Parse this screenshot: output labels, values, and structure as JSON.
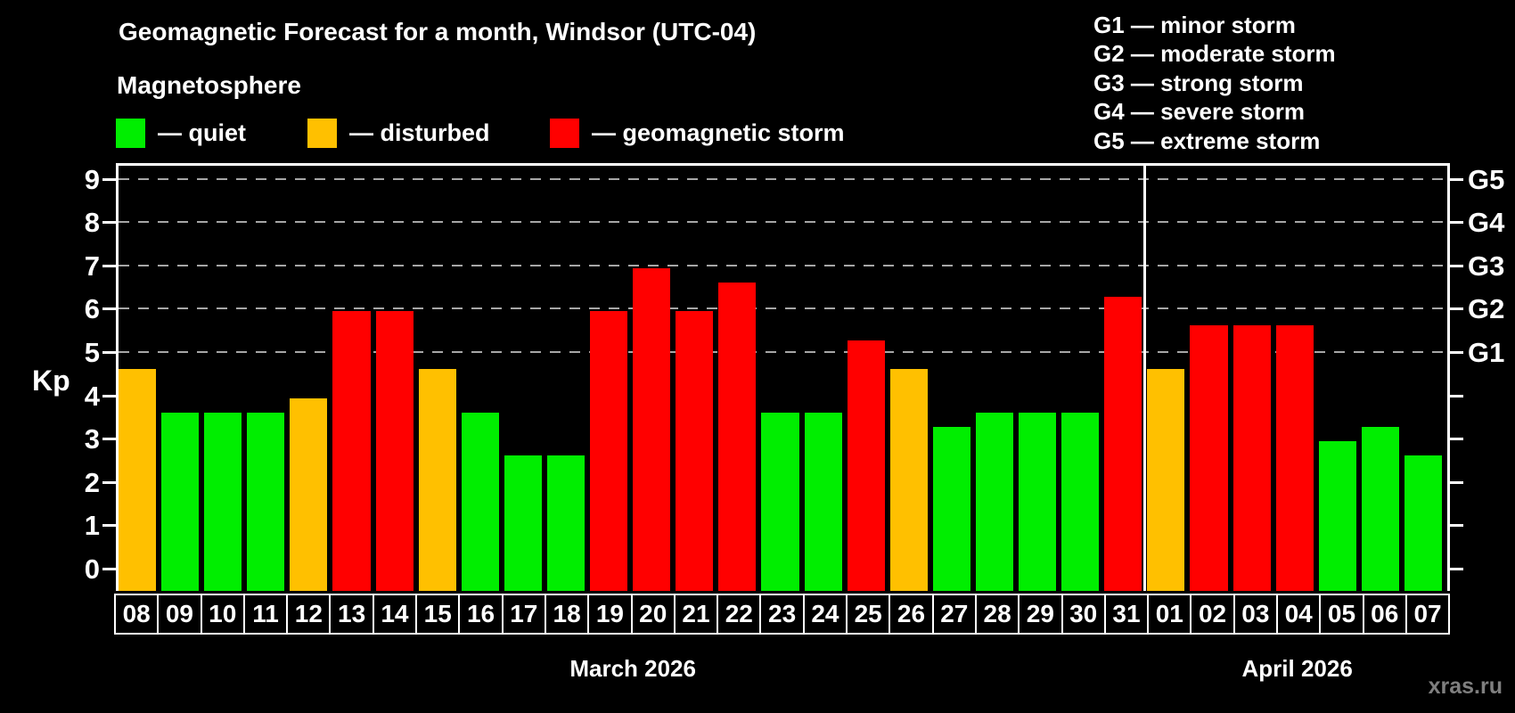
{
  "title": "Geomagnetic Forecast for a month, Windsor (UTC-04)",
  "subtitle": "Magnetosphere",
  "legend": [
    {
      "key": "quiet",
      "label": "— quiet",
      "color": "#00ee00"
    },
    {
      "key": "disturbed",
      "label": "— disturbed",
      "color": "#ffc000"
    },
    {
      "key": "storm",
      "label": "— geomagnetic storm",
      "color": "#ff0000"
    }
  ],
  "g_legend": [
    "G1 — minor storm",
    "G2 — moderate storm",
    "G3 — strong storm",
    "G4 — severe storm",
    "G5 — extreme storm"
  ],
  "ylabel": "Kp",
  "watermark": "xras.ru",
  "colors": {
    "quiet": "#00ee00",
    "disturbed": "#ffc000",
    "storm": "#ff0000",
    "grid": "#a6a6a6",
    "axis": "#ffffff",
    "background": "#000000",
    "watermark_text": "#7f7f7f"
  },
  "chart_data": {
    "type": "bar",
    "title": "Geomagnetic Forecast for a month, Windsor (UTC-04)",
    "xlabel": "",
    "ylabel": "Kp",
    "ylim": [
      -0.45,
      9.36
    ],
    "grid": "dashed horizontal at Kp 5-9 only",
    "y_ticks": [
      0,
      1,
      2,
      3,
      4,
      5,
      6,
      7,
      8,
      9
    ],
    "gridlines_at": [
      5,
      6,
      7,
      8,
      9
    ],
    "right_axis_labels": [
      {
        "kp": 5,
        "label": "G1"
      },
      {
        "kp": 6,
        "label": "G2"
      },
      {
        "kp": 7,
        "label": "G3"
      },
      {
        "kp": 8,
        "label": "G4"
      },
      {
        "kp": 9,
        "label": "G5"
      }
    ],
    "months": [
      {
        "label": "March 2026",
        "days": 24
      },
      {
        "label": "April 2026",
        "days": 7
      }
    ],
    "bars": [
      {
        "day": "08",
        "value": 4.67,
        "status": "disturbed"
      },
      {
        "day": "09",
        "value": 3.67,
        "status": "quiet"
      },
      {
        "day": "10",
        "value": 3.67,
        "status": "quiet"
      },
      {
        "day": "11",
        "value": 3.67,
        "status": "quiet"
      },
      {
        "day": "12",
        "value": 4.0,
        "status": "disturbed"
      },
      {
        "day": "13",
        "value": 6.0,
        "status": "storm"
      },
      {
        "day": "14",
        "value": 6.0,
        "status": "storm"
      },
      {
        "day": "15",
        "value": 4.67,
        "status": "disturbed"
      },
      {
        "day": "16",
        "value": 3.67,
        "status": "quiet"
      },
      {
        "day": "17",
        "value": 2.67,
        "status": "quiet"
      },
      {
        "day": "18",
        "value": 2.67,
        "status": "quiet"
      },
      {
        "day": "19",
        "value": 6.0,
        "status": "storm"
      },
      {
        "day": "20",
        "value": 7.0,
        "status": "storm"
      },
      {
        "day": "21",
        "value": 6.0,
        "status": "storm"
      },
      {
        "day": "22",
        "value": 6.67,
        "status": "storm"
      },
      {
        "day": "23",
        "value": 3.67,
        "status": "quiet"
      },
      {
        "day": "24",
        "value": 3.67,
        "status": "quiet"
      },
      {
        "day": "25",
        "value": 5.33,
        "status": "storm"
      },
      {
        "day": "26",
        "value": 4.67,
        "status": "disturbed"
      },
      {
        "day": "27",
        "value": 3.33,
        "status": "quiet"
      },
      {
        "day": "28",
        "value": 3.67,
        "status": "quiet"
      },
      {
        "day": "29",
        "value": 3.67,
        "status": "quiet"
      },
      {
        "day": "30",
        "value": 3.67,
        "status": "quiet"
      },
      {
        "day": "31",
        "value": 6.33,
        "status": "storm"
      },
      {
        "day": "01",
        "value": 4.67,
        "status": "disturbed"
      },
      {
        "day": "02",
        "value": 5.67,
        "status": "storm"
      },
      {
        "day": "03",
        "value": 5.67,
        "status": "storm"
      },
      {
        "day": "04",
        "value": 5.67,
        "status": "storm"
      },
      {
        "day": "05",
        "value": 3.0,
        "status": "quiet"
      },
      {
        "day": "06",
        "value": 3.33,
        "status": "quiet"
      },
      {
        "day": "07",
        "value": 2.67,
        "status": "quiet"
      }
    ]
  }
}
